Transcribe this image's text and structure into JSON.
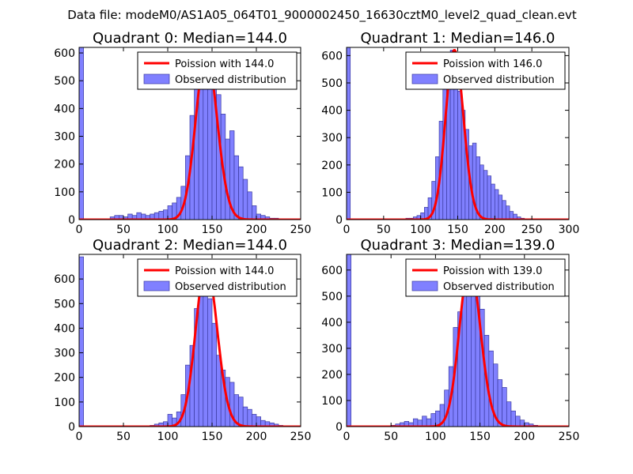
{
  "figure": {
    "suptitle": "Data file: modeM0/AS1A05_064T01_9000002450_16630cztM0_level2_quad_clean.evt"
  },
  "colors": {
    "bar_fill": "#8080ff",
    "bar_edge": "#3a3aa0",
    "poisson_line": "#ff0000",
    "legend_border": "#000000"
  },
  "chart_data": [
    {
      "type": "bar",
      "title": "Quadrant 0: Median=144.0",
      "median": 144.0,
      "xlim": [
        0,
        250
      ],
      "ylim": [
        0,
        620
      ],
      "xticks": [
        0,
        50,
        100,
        150,
        200,
        250
      ],
      "yticks": [
        0,
        100,
        200,
        300,
        400,
        500,
        600
      ],
      "bin_width": 5,
      "bins": [
        0,
        5,
        10,
        15,
        20,
        25,
        30,
        35,
        40,
        45,
        50,
        55,
        60,
        65,
        70,
        75,
        80,
        85,
        90,
        95,
        100,
        105,
        110,
        115,
        120,
        125,
        130,
        135,
        140,
        145,
        150,
        155,
        160,
        165,
        170,
        175,
        180,
        185,
        190,
        195,
        200,
        205,
        210,
        215,
        220,
        225,
        230
      ],
      "counts": [
        620,
        0,
        0,
        0,
        0,
        0,
        0,
        10,
        15,
        15,
        10,
        20,
        15,
        25,
        20,
        15,
        20,
        25,
        30,
        35,
        50,
        60,
        80,
        120,
        230,
        375,
        560,
        520,
        560,
        600,
        560,
        450,
        380,
        290,
        320,
        230,
        190,
        145,
        100,
        50,
        20,
        15,
        10,
        5,
        5,
        3,
        2
      ],
      "poisson_label": "Poission with 144.0",
      "observed_label": "Observed distribution",
      "legend_loc": "upper right"
    },
    {
      "type": "bar",
      "title": "Quadrant 1: Median=146.0",
      "median": 146.0,
      "xlim": [
        0,
        300
      ],
      "ylim": [
        0,
        630
      ],
      "xticks": [
        0,
        50,
        100,
        150,
        200,
        250,
        300
      ],
      "yticks": [
        0,
        100,
        200,
        300,
        400,
        500,
        600
      ],
      "bin_width": 5,
      "bins": [
        0,
        5,
        10,
        15,
        20,
        25,
        30,
        35,
        40,
        45,
        50,
        55,
        60,
        65,
        70,
        75,
        80,
        85,
        90,
        95,
        100,
        105,
        110,
        115,
        120,
        125,
        130,
        135,
        140,
        145,
        150,
        155,
        160,
        165,
        170,
        175,
        180,
        185,
        190,
        195,
        200,
        205,
        210,
        215,
        220,
        225,
        230,
        235,
        240,
        245,
        250,
        255
      ],
      "counts": [
        630,
        0,
        0,
        0,
        0,
        0,
        0,
        0,
        0,
        0,
        0,
        0,
        0,
        0,
        0,
        0,
        5,
        5,
        10,
        15,
        25,
        45,
        80,
        140,
        230,
        360,
        480,
        560,
        620,
        520,
        470,
        400,
        330,
        270,
        280,
        230,
        200,
        180,
        160,
        130,
        110,
        90,
        70,
        50,
        30,
        20,
        10,
        5,
        3,
        2,
        1,
        1
      ],
      "poisson_label": "Poission with 146.0",
      "observed_label": "Observed distribution",
      "legend_loc": "upper right"
    },
    {
      "type": "bar",
      "title": "Quadrant 2: Median=144.0",
      "median": 144.0,
      "xlim": [
        0,
        250
      ],
      "ylim": [
        0,
        700
      ],
      "xticks": [
        0,
        50,
        100,
        150,
        200,
        250
      ],
      "yticks": [
        0,
        100,
        200,
        300,
        400,
        500,
        600
      ],
      "bin_width": 5,
      "bins": [
        0,
        5,
        10,
        15,
        20,
        25,
        30,
        35,
        40,
        45,
        50,
        55,
        60,
        65,
        70,
        75,
        80,
        85,
        90,
        95,
        100,
        105,
        110,
        115,
        120,
        125,
        130,
        135,
        140,
        145,
        150,
        155,
        160,
        165,
        170,
        175,
        180,
        185,
        190,
        195,
        200,
        205,
        210,
        215,
        220,
        225,
        230,
        235
      ],
      "counts": [
        690,
        0,
        0,
        0,
        0,
        0,
        0,
        0,
        0,
        0,
        0,
        0,
        0,
        0,
        0,
        0,
        5,
        10,
        15,
        20,
        50,
        35,
        60,
        130,
        250,
        330,
        480,
        570,
        660,
        520,
        420,
        290,
        230,
        200,
        180,
        130,
        120,
        80,
        70,
        50,
        40,
        25,
        20,
        15,
        10,
        5,
        3,
        2
      ],
      "poisson_label": "Poission with 144.0",
      "observed_label": "Observed distribution",
      "legend_loc": "upper right"
    },
    {
      "type": "bar",
      "title": "Quadrant 3: Median=139.0",
      "median": 139.0,
      "xlim": [
        0,
        250
      ],
      "ylim": [
        0,
        660
      ],
      "xticks": [
        0,
        50,
        100,
        150,
        200,
        250
      ],
      "yticks": [
        0,
        100,
        200,
        300,
        400,
        500,
        600
      ],
      "bin_width": 5,
      "bins": [
        0,
        5,
        10,
        15,
        20,
        25,
        30,
        35,
        40,
        45,
        50,
        55,
        60,
        65,
        70,
        75,
        80,
        85,
        90,
        95,
        100,
        105,
        110,
        115,
        120,
        125,
        130,
        135,
        140,
        145,
        150,
        155,
        160,
        165,
        170,
        175,
        180,
        185,
        190,
        195,
        200,
        205,
        210,
        215,
        220
      ],
      "counts": [
        660,
        0,
        0,
        0,
        0,
        0,
        0,
        0,
        0,
        0,
        5,
        10,
        15,
        20,
        15,
        30,
        25,
        40,
        30,
        50,
        60,
        85,
        140,
        230,
        380,
        440,
        500,
        590,
        620,
        560,
        450,
        350,
        290,
        240,
        180,
        150,
        95,
        60,
        40,
        25,
        15,
        10,
        5,
        3,
        2
      ],
      "poisson_label": "Poission with 139.0",
      "observed_label": "Observed distribution",
      "legend_loc": "upper right"
    }
  ]
}
